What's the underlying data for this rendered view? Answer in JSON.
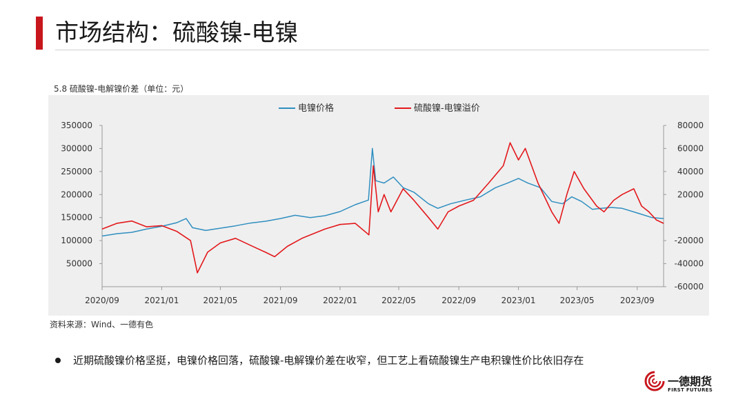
{
  "page": {
    "title": "市场结构：硫酸镍-电镍",
    "chart_caption": "5.8 硫酸镍-电解镍价差（单位：元）",
    "source": "资料来源：Wind、一德有色",
    "bullet": "近期硫酸镍价格坚挺，电镍价格回落，硫酸镍-电解镍价差在收窄，但工艺上看硫酸镍生产电积镍性价比依旧存在"
  },
  "logo": {
    "cn": "一德期货",
    "en": "FIRST FUTURES"
  },
  "colors": {
    "accent": "#c8161d",
    "nickel": "#2e8ec0",
    "spread": "#e3171a"
  },
  "chart_data": {
    "type": "line",
    "title": "",
    "legend_position": "top-center",
    "grid": false,
    "x_ticks": [
      "2020/09",
      "2021/01",
      "2021/05",
      "2021/09",
      "2022/01",
      "2022/05",
      "2022/09",
      "2023/01",
      "2023/05",
      "2023/09"
    ],
    "x_range": [
      "2020/09/01",
      "2023/10/25"
    ],
    "y_left": {
      "lim": [
        0,
        350000
      ],
      "ticks": [
        50000,
        100000,
        150000,
        200000,
        250000,
        300000,
        350000
      ]
    },
    "y_right": {
      "lim": [
        -60000,
        80000
      ],
      "ticks": [
        -60000,
        -40000,
        -20000,
        20000,
        40000,
        60000,
        80000
      ]
    },
    "series": [
      {
        "name": "电镍价格",
        "axis": "left",
        "color": "#2e8ec0",
        "points": [
          [
            "2020/09/01",
            110000
          ],
          [
            "2020/10/01",
            115000
          ],
          [
            "2020/11/01",
            118000
          ],
          [
            "2020/12/01",
            125000
          ],
          [
            "2021/01/01",
            131000
          ],
          [
            "2021/02/01",
            139000
          ],
          [
            "2021/02/20",
            148000
          ],
          [
            "2021/03/05",
            128000
          ],
          [
            "2021/04/01",
            122000
          ],
          [
            "2021/05/01",
            127000
          ],
          [
            "2021/06/01",
            132000
          ],
          [
            "2021/07/01",
            138000
          ],
          [
            "2021/08/01",
            142000
          ],
          [
            "2021/09/01",
            148000
          ],
          [
            "2021/10/01",
            155000
          ],
          [
            "2021/11/01",
            150000
          ],
          [
            "2021/12/01",
            154000
          ],
          [
            "2022/01/01",
            163000
          ],
          [
            "2022/02/01",
            178000
          ],
          [
            "2022/02/28",
            188000
          ],
          [
            "2022/03/08",
            300000
          ],
          [
            "2022/03/15",
            230000
          ],
          [
            "2022/04/01",
            225000
          ],
          [
            "2022/04/20",
            238000
          ],
          [
            "2022/05/10",
            215000
          ],
          [
            "2022/06/01",
            205000
          ],
          [
            "2022/07/01",
            180000
          ],
          [
            "2022/07/20",
            170000
          ],
          [
            "2022/08/15",
            180000
          ],
          [
            "2022/09/15",
            188000
          ],
          [
            "2022/10/15",
            195000
          ],
          [
            "2022/11/15",
            215000
          ],
          [
            "2022/12/10",
            225000
          ],
          [
            "2023/01/01",
            235000
          ],
          [
            "2023/01/20",
            225000
          ],
          [
            "2023/02/15",
            215000
          ],
          [
            "2023/03/10",
            185000
          ],
          [
            "2023/04/01",
            180000
          ],
          [
            "2023/04/20",
            195000
          ],
          [
            "2023/05/10",
            185000
          ],
          [
            "2023/06/01",
            168000
          ],
          [
            "2023/06/20",
            170000
          ],
          [
            "2023/07/10",
            172000
          ],
          [
            "2023/08/01",
            170000
          ],
          [
            "2023/09/01",
            160000
          ],
          [
            "2023/10/01",
            150000
          ],
          [
            "2023/10/25",
            148000
          ]
        ]
      },
      {
        "name": "硫酸镍-电镍溢价",
        "axis": "right",
        "color": "#e3171a",
        "points": [
          [
            "2020/09/01",
            -10000
          ],
          [
            "2020/10/01",
            -5000
          ],
          [
            "2020/11/01",
            -3000
          ],
          [
            "2020/12/01",
            -8000
          ],
          [
            "2021/01/01",
            -7000
          ],
          [
            "2021/02/01",
            -12000
          ],
          [
            "2021/03/01",
            -20000
          ],
          [
            "2021/03/15",
            -48000
          ],
          [
            "2021/04/05",
            -30000
          ],
          [
            "2021/05/01",
            -22000
          ],
          [
            "2021/06/01",
            -18000
          ],
          [
            "2021/07/01",
            -24000
          ],
          [
            "2021/08/01",
            -30000
          ],
          [
            "2021/08/20",
            -34000
          ],
          [
            "2021/09/15",
            -25000
          ],
          [
            "2021/10/15",
            -18000
          ],
          [
            "2021/12/01",
            -10000
          ],
          [
            "2022/01/01",
            -6000
          ],
          [
            "2022/02/01",
            -5000
          ],
          [
            "2022/03/01",
            -15000
          ],
          [
            "2022/03/10",
            45000
          ],
          [
            "2022/03/20",
            5000
          ],
          [
            "2022/04/01",
            20000
          ],
          [
            "2022/04/15",
            5000
          ],
          [
            "2022/05/10",
            25000
          ],
          [
            "2022/06/01",
            15000
          ],
          [
            "2022/07/01",
            0
          ],
          [
            "2022/07/20",
            -10000
          ],
          [
            "2022/08/10",
            5000
          ],
          [
            "2022/09/01",
            10000
          ],
          [
            "2022/10/01",
            15000
          ],
          [
            "2022/11/01",
            30000
          ],
          [
            "2022/12/01",
            45000
          ],
          [
            "2022/12/15",
            65000
          ],
          [
            "2023/01/01",
            50000
          ],
          [
            "2023/01/15",
            60000
          ],
          [
            "2023/02/10",
            30000
          ],
          [
            "2023/03/10",
            5000
          ],
          [
            "2023/03/25",
            -5000
          ],
          [
            "2023/04/10",
            20000
          ],
          [
            "2023/04/25",
            40000
          ],
          [
            "2023/05/15",
            25000
          ],
          [
            "2023/06/10",
            10000
          ],
          [
            "2023/06/25",
            5000
          ],
          [
            "2023/07/15",
            15000
          ],
          [
            "2023/08/01",
            20000
          ],
          [
            "2023/08/25",
            25000
          ],
          [
            "2023/09/10",
            10000
          ],
          [
            "2023/09/25",
            5000
          ],
          [
            "2023/10/10",
            -2000
          ],
          [
            "2023/10/25",
            -5000
          ]
        ]
      }
    ]
  }
}
